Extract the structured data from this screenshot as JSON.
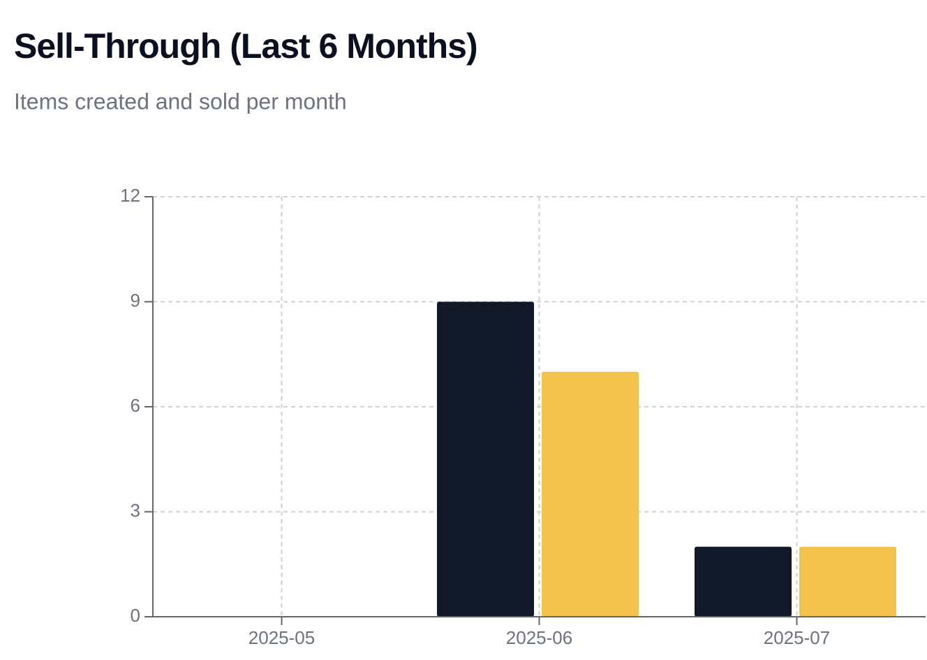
{
  "chart_data": {
    "type": "bar",
    "title": "Sell-Through (Last 6 Months)",
    "subtitle": "Items created and sold per month",
    "categories": [
      "2025-05",
      "2025-06",
      "2025-07"
    ],
    "series": [
      {
        "color": "#111827",
        "values": [
          0,
          9,
          2
        ]
      },
      {
        "color": "#f1c24c",
        "values": [
          0,
          7,
          2
        ]
      }
    ],
    "ylim": [
      0,
      12
    ],
    "yticks": [
      0,
      3,
      6,
      9,
      12
    ],
    "grid": true
  }
}
